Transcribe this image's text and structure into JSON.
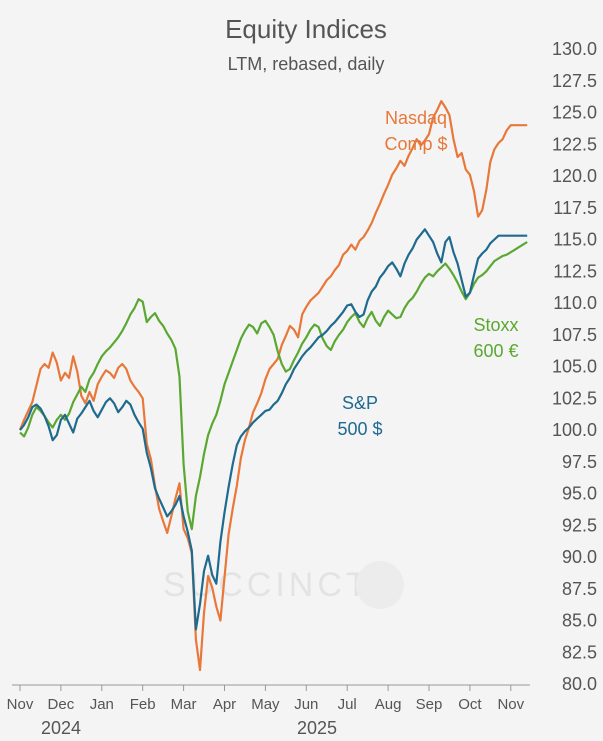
{
  "title": "Equity Indices",
  "subtitle": "LTM, rebased, daily",
  "watermark": "SUCCINCT",
  "chart_data": {
    "type": "line",
    "title": "Equity Indices",
    "subtitle": "LTM, rebased, daily",
    "ylim": [
      80,
      130
    ],
    "y_ticks": [
      "80.0",
      "82.5",
      "85.0",
      "87.5",
      "90.0",
      "92.5",
      "95.0",
      "97.5",
      "100.0",
      "102.5",
      "105.0",
      "107.5",
      "110.0",
      "112.5",
      "115.0",
      "117.5",
      "120.0",
      "122.5",
      "125.0",
      "127.5",
      "130.0"
    ],
    "x_tick_labels": [
      "Nov",
      "Dec",
      "Jan",
      "Feb",
      "Mar",
      "Apr",
      "May",
      "Jun",
      "Jul",
      "Aug",
      "Sep",
      "Oct",
      "Nov"
    ],
    "year_labels": [
      "2024",
      "2025"
    ],
    "grid": false,
    "y_axis_side": "right",
    "series": [
      {
        "name": "Nasdaq Comp $",
        "label_lines": [
          "Nasdaq",
          "Comp $"
        ],
        "color": "#e8783a",
        "x": [
          0,
          0.1,
          0.2,
          0.3,
          0.4,
          0.5,
          0.6,
          0.7,
          0.8,
          0.9,
          1.0,
          1.1,
          1.2,
          1.3,
          1.4,
          1.5,
          1.6,
          1.7,
          1.8,
          1.9,
          2.0,
          2.1,
          2.2,
          2.3,
          2.4,
          2.5,
          2.6,
          2.7,
          2.8,
          2.9,
          3.0,
          3.1,
          3.2,
          3.3,
          3.4,
          3.5,
          3.6,
          3.7,
          3.8,
          3.9,
          4.0,
          4.1,
          4.2,
          4.3,
          4.4,
          4.5,
          4.6,
          4.7,
          4.8,
          4.9,
          5.0,
          5.1,
          5.2,
          5.3,
          5.4,
          5.5,
          5.6,
          5.7,
          5.8,
          5.9,
          6.0,
          6.1,
          6.2,
          6.3,
          6.4,
          6.5,
          6.6,
          6.7,
          6.8,
          6.9,
          7.0,
          7.1,
          7.2,
          7.3,
          7.4,
          7.5,
          7.6,
          7.7,
          7.8,
          7.9,
          8.0,
          8.1,
          8.2,
          8.3,
          8.4,
          8.5,
          8.6,
          8.7,
          8.8,
          8.9,
          9.0,
          9.1,
          9.2,
          9.3,
          9.4,
          9.5,
          9.6,
          9.7,
          9.8,
          9.9,
          10.0,
          10.1,
          10.2,
          10.3,
          10.4,
          10.5,
          10.6,
          10.7,
          10.8,
          10.9,
          11.0,
          11.1,
          11.2,
          11.3,
          11.4,
          11.5,
          11.6,
          11.7,
          11.8,
          11.9,
          12.0,
          12.1,
          12.2,
          12.3,
          12.4
        ],
        "values": [
          100.0,
          100.8,
          101.5,
          102.2,
          103.5,
          104.8,
          105.2,
          104.9,
          106.1,
          105.3,
          103.9,
          104.5,
          104.1,
          105.8,
          104.6,
          102.7,
          102.1,
          103.0,
          102.3,
          103.6,
          104.2,
          104.7,
          104.5,
          104.1,
          104.9,
          105.2,
          104.8,
          103.9,
          103.4,
          103.0,
          102.5,
          98.9,
          97.7,
          95.6,
          93.8,
          92.8,
          91.9,
          93.2,
          94.6,
          95.8,
          92.2,
          91.5,
          90.3,
          83.5,
          81.1,
          85.6,
          88.5,
          87.6,
          86.1,
          85.0,
          88.4,
          91.8,
          93.8,
          95.6,
          97.8,
          99.2,
          100.2,
          101.4,
          102.1,
          102.9,
          104.0,
          104.8,
          105.2,
          105.6,
          106.7,
          107.4,
          108.2,
          107.9,
          107.3,
          109.1,
          109.7,
          110.2,
          110.5,
          110.8,
          111.3,
          111.8,
          112.1,
          112.6,
          113.0,
          113.8,
          114.1,
          114.6,
          114.2,
          114.9,
          115.2,
          115.7,
          116.3,
          117.1,
          117.8,
          118.6,
          119.3,
          120.1,
          120.6,
          121.2,
          120.8,
          121.6,
          122.2,
          122.9,
          122.4,
          122.8,
          123.3,
          124.6,
          125.2,
          125.9,
          125.4,
          124.8,
          122.9,
          121.5,
          121.8,
          120.5,
          120.1,
          118.8,
          116.8,
          117.3,
          118.9,
          121.1,
          122.1,
          122.6,
          122.9,
          123.6,
          124.0,
          124.0,
          124.0,
          124.0,
          124.0
        ]
      },
      {
        "name": "Stoxx 600 €",
        "label_lines": [
          "Stoxx",
          "600 €"
        ],
        "color": "#5aa832",
        "x": [
          0,
          0.1,
          0.2,
          0.3,
          0.4,
          0.5,
          0.6,
          0.7,
          0.8,
          0.9,
          1.0,
          1.1,
          1.2,
          1.3,
          1.4,
          1.5,
          1.6,
          1.7,
          1.8,
          1.9,
          2.0,
          2.1,
          2.2,
          2.3,
          2.4,
          2.5,
          2.6,
          2.7,
          2.8,
          2.9,
          3.0,
          3.1,
          3.2,
          3.3,
          3.4,
          3.5,
          3.6,
          3.7,
          3.8,
          3.9,
          4.0,
          4.1,
          4.2,
          4.3,
          4.4,
          4.5,
          4.6,
          4.7,
          4.8,
          4.9,
          5.0,
          5.1,
          5.2,
          5.3,
          5.4,
          5.5,
          5.6,
          5.7,
          5.8,
          5.9,
          6.0,
          6.1,
          6.2,
          6.3,
          6.4,
          6.5,
          6.6,
          6.7,
          6.8,
          6.9,
          7.0,
          7.1,
          7.2,
          7.3,
          7.4,
          7.5,
          7.6,
          7.7,
          7.8,
          7.9,
          8.0,
          8.1,
          8.2,
          8.3,
          8.4,
          8.5,
          8.6,
          8.7,
          8.8,
          8.9,
          9.0,
          9.1,
          9.2,
          9.3,
          9.4,
          9.5,
          9.6,
          9.7,
          9.8,
          9.9,
          10.0,
          10.1,
          10.2,
          10.3,
          10.4,
          10.5,
          10.6,
          10.7,
          10.8,
          10.9,
          11.0,
          11.1,
          11.2,
          11.3,
          11.4,
          11.5,
          11.6,
          11.7,
          11.8,
          11.9,
          12.0,
          12.1,
          12.2,
          12.3,
          12.4
        ],
        "values": [
          99.8,
          99.5,
          100.2,
          101.2,
          101.8,
          101.5,
          101.1,
          100.6,
          100.2,
          100.8,
          101.2,
          100.8,
          101.3,
          102.2,
          102.8,
          103.4,
          103.0,
          104.0,
          104.5,
          105.2,
          105.8,
          106.2,
          106.5,
          106.9,
          107.3,
          107.8,
          108.4,
          109.1,
          109.6,
          110.3,
          110.1,
          108.5,
          108.9,
          109.2,
          108.6,
          108.2,
          107.6,
          107.1,
          106.4,
          104.2,
          97.3,
          93.6,
          92.2,
          94.8,
          96.3,
          98.1,
          99.6,
          100.5,
          101.2,
          102.3,
          103.6,
          104.5,
          105.4,
          106.3,
          107.2,
          107.8,
          108.3,
          108.1,
          107.6,
          108.4,
          108.6,
          108.1,
          107.5,
          106.2,
          105.2,
          104.6,
          104.8,
          105.5,
          106.1,
          106.8,
          107.3,
          107.9,
          108.3,
          108.1,
          107.2,
          106.6,
          106.3,
          107.0,
          107.5,
          107.9,
          108.5,
          108.9,
          109.2,
          108.5,
          108.1,
          108.8,
          109.3,
          108.6,
          108.2,
          108.9,
          109.4,
          109.1,
          108.8,
          108.9,
          109.6,
          110.1,
          110.4,
          110.9,
          111.5,
          112.0,
          112.3,
          112.1,
          112.5,
          112.8,
          113.1,
          112.7,
          112.2,
          111.6,
          110.9,
          110.3,
          110.8,
          111.5,
          112.0,
          112.2,
          112.5,
          112.9,
          113.3,
          113.5,
          113.7,
          113.8,
          114.0,
          114.2,
          114.4,
          114.6,
          114.8
        ]
      },
      {
        "name": "S&P 500 $",
        "label_lines": [
          "S&P",
          "500 $"
        ],
        "color": "#1f6a8f",
        "x": [
          0,
          0.1,
          0.2,
          0.3,
          0.4,
          0.5,
          0.6,
          0.7,
          0.8,
          0.9,
          1.0,
          1.1,
          1.2,
          1.3,
          1.4,
          1.5,
          1.6,
          1.7,
          1.8,
          1.9,
          2.0,
          2.1,
          2.2,
          2.3,
          2.4,
          2.5,
          2.6,
          2.7,
          2.8,
          2.9,
          3.0,
          3.1,
          3.2,
          3.3,
          3.4,
          3.5,
          3.6,
          3.7,
          3.8,
          3.9,
          4.0,
          4.1,
          4.2,
          4.3,
          4.4,
          4.5,
          4.6,
          4.7,
          4.8,
          4.9,
          5.0,
          5.1,
          5.2,
          5.3,
          5.4,
          5.5,
          5.6,
          5.7,
          5.8,
          5.9,
          6.0,
          6.1,
          6.2,
          6.3,
          6.4,
          6.5,
          6.6,
          6.7,
          6.8,
          6.9,
          7.0,
          7.1,
          7.2,
          7.3,
          7.4,
          7.5,
          7.6,
          7.7,
          7.8,
          7.9,
          8.0,
          8.1,
          8.2,
          8.3,
          8.4,
          8.5,
          8.6,
          8.7,
          8.8,
          8.9,
          9.0,
          9.1,
          9.2,
          9.3,
          9.4,
          9.5,
          9.6,
          9.7,
          9.8,
          9.9,
          10.0,
          10.1,
          10.2,
          10.3,
          10.4,
          10.5,
          10.6,
          10.7,
          10.8,
          10.9,
          11.0,
          11.1,
          11.2,
          11.3,
          11.4,
          11.5,
          11.6,
          11.7,
          11.8,
          11.9,
          12.0,
          12.1,
          12.2,
          12.3,
          12.4
        ],
        "values": [
          100.0,
          100.4,
          101.0,
          101.8,
          102.0,
          101.7,
          101.1,
          100.3,
          99.2,
          99.6,
          100.8,
          101.2,
          100.5,
          99.8,
          100.9,
          101.3,
          101.8,
          102.3,
          101.5,
          101.0,
          101.6,
          102.2,
          102.5,
          102.1,
          101.4,
          101.8,
          102.3,
          102.0,
          101.2,
          100.6,
          100.1,
          98.2,
          97.0,
          95.4,
          94.6,
          93.9,
          93.2,
          93.6,
          94.1,
          94.8,
          93.2,
          92.0,
          90.5,
          84.3,
          86.3,
          88.9,
          90.1,
          88.6,
          87.9,
          91.2,
          93.5,
          95.5,
          97.3,
          98.8,
          99.5,
          99.9,
          100.2,
          100.6,
          100.9,
          101.2,
          101.5,
          101.6,
          102.0,
          102.3,
          102.9,
          103.6,
          104.1,
          104.8,
          105.3,
          105.8,
          106.2,
          106.5,
          106.9,
          107.3,
          107.5,
          107.8,
          108.2,
          108.5,
          108.9,
          109.3,
          109.8,
          109.9,
          109.3,
          108.9,
          109.1,
          110.2,
          110.9,
          111.3,
          112.0,
          112.4,
          112.9,
          113.2,
          112.7,
          112.1,
          113.1,
          113.8,
          114.3,
          115.0,
          115.4,
          115.8,
          115.3,
          114.8,
          113.9,
          113.2,
          114.8,
          115.2,
          114.0,
          113.1,
          111.8,
          110.5,
          110.8,
          112.2,
          113.5,
          113.9,
          114.2,
          114.7,
          115.0,
          115.3,
          115.3,
          115.3,
          115.3,
          115.3,
          115.3,
          115.3,
          115.3
        ]
      }
    ]
  }
}
